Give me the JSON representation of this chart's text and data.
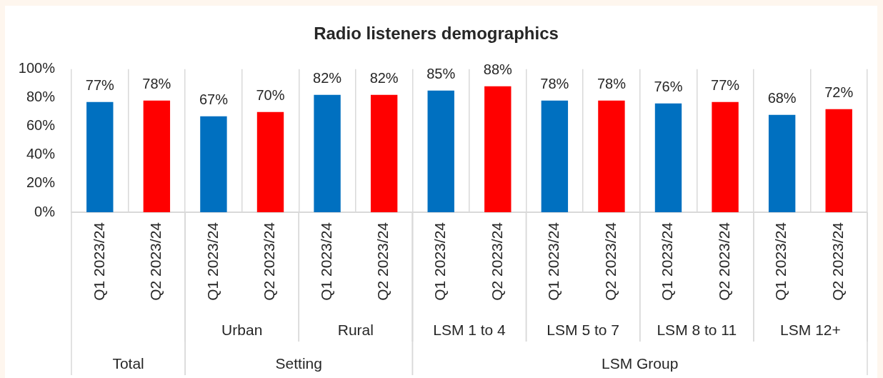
{
  "chart_data": {
    "type": "bar",
    "title": "Radio listeners demographics",
    "categories": [
      "Q1 2023/24",
      "Q2 2023/24",
      "Q1 2023/24",
      "Q2 2023/24",
      "Q1 2023/24",
      "Q2 2023/24",
      "Q1 2023/24",
      "Q2 2023/24",
      "Q1 2023/24",
      "Q2 2023/24",
      "Q1 2023/24",
      "Q2 2023/24",
      "Q1 2023/24",
      "Q2 2023/24"
    ],
    "values": [
      77,
      78,
      67,
      70,
      82,
      82,
      85,
      88,
      78,
      78,
      76,
      77,
      68,
      72
    ],
    "colors": [
      "#0070c0",
      "#ff0000",
      "#0070c0",
      "#ff0000",
      "#0070c0",
      "#ff0000",
      "#0070c0",
      "#ff0000",
      "#0070c0",
      "#ff0000",
      "#0070c0",
      "#ff0000",
      "#0070c0",
      "#ff0000"
    ],
    "value_labels": [
      "77%",
      "78%",
      "67%",
      "70%",
      "82%",
      "82%",
      "85%",
      "88%",
      "78%",
      "78%",
      "76%",
      "77%",
      "68%",
      "72%"
    ],
    "ylim": [
      0,
      100
    ],
    "yticks": [
      {
        "value": 0,
        "label": "0%"
      },
      {
        "value": 20,
        "label": "20%"
      },
      {
        "value": 40,
        "label": "40%"
      },
      {
        "value": 60,
        "label": "60%"
      },
      {
        "value": 80,
        "label": "80%"
      },
      {
        "value": 100,
        "label": "100%"
      }
    ],
    "grid": "x",
    "annotations": [
      "Urban",
      "Rural",
      "LSM 1 to 4",
      "LSM 5 to 7",
      "LSM 8 to 11",
      "LSM 12+",
      "Total",
      "Setting",
      "LSM Group"
    ]
  }
}
